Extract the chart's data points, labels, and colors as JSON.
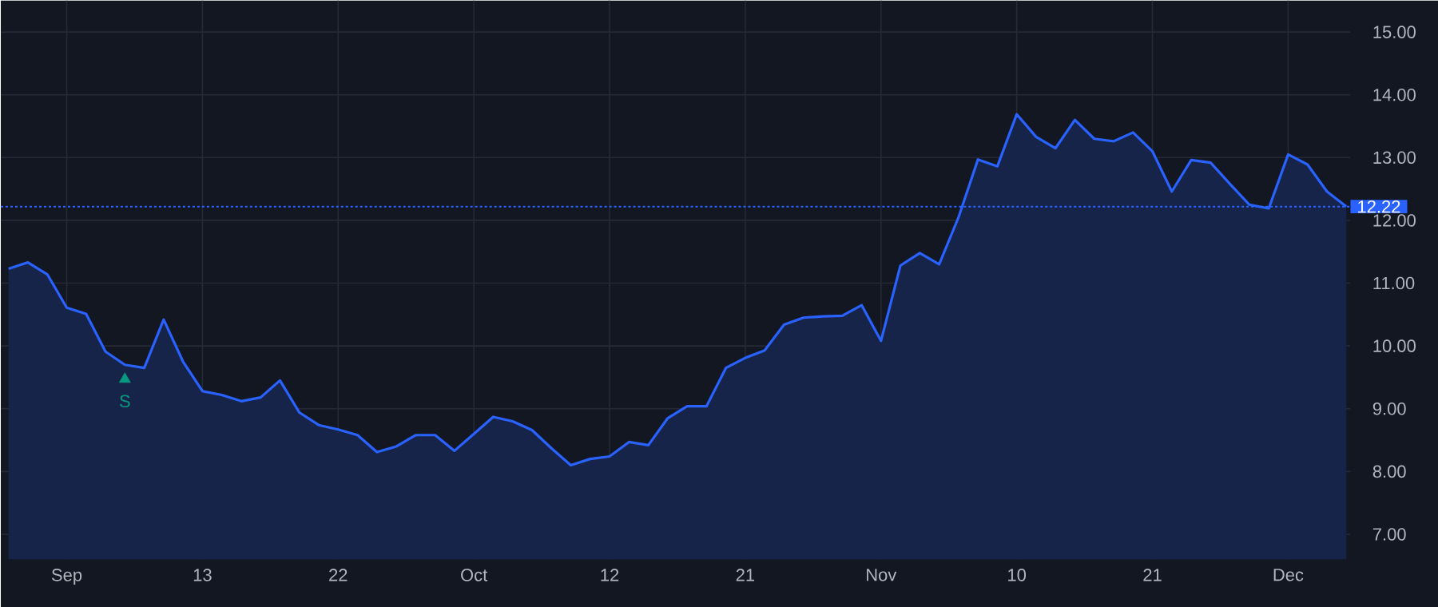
{
  "chart_data": {
    "type": "area",
    "categories": [
      null,
      null,
      null,
      "Sep",
      null,
      null,
      null,
      null,
      null,
      null,
      "13",
      null,
      null,
      null,
      null,
      null,
      null,
      "22",
      null,
      null,
      null,
      null,
      null,
      null,
      "Oct",
      null,
      null,
      null,
      null,
      null,
      null,
      "12",
      null,
      null,
      null,
      null,
      null,
      null,
      "21",
      null,
      null,
      null,
      null,
      null,
      null,
      "Nov",
      null,
      null,
      null,
      null,
      null,
      null,
      "10",
      null,
      null,
      null,
      null,
      null,
      null,
      "21",
      null,
      null,
      null,
      null,
      null,
      null,
      "Dec",
      null,
      null,
      null
    ],
    "series": [
      {
        "color": "#2962ff",
        "values": [
          11.23,
          11.33,
          11.14,
          10.61,
          10.51,
          9.91,
          9.7,
          9.65,
          10.42,
          9.75,
          9.28,
          9.22,
          9.12,
          9.18,
          9.45,
          8.94,
          8.74,
          8.67,
          8.58,
          8.31,
          8.4,
          8.58,
          8.58,
          8.33,
          8.6,
          8.87,
          8.8,
          8.66,
          8.37,
          8.1,
          8.2,
          8.24,
          8.47,
          8.42,
          8.85,
          9.04,
          9.04,
          9.65,
          9.81,
          9.93,
          10.34,
          10.45,
          10.47,
          10.48,
          10.65,
          10.08,
          11.28,
          11.48,
          11.3,
          12.05,
          12.97,
          12.86,
          13.69,
          13.33,
          13.15,
          13.6,
          13.3,
          13.26,
          13.4,
          13.1,
          12.46,
          12.96,
          12.92,
          12.58,
          12.25,
          12.19,
          13.05,
          12.89,
          12.46,
          12.22
        ]
      },
      {
        "type": "scatter",
        "name": "S",
        "color": "#089981",
        "marker": "triangle",
        "values": [
          null,
          null,
          null,
          null,
          null,
          null,
          9.47,
          null,
          null,
          null,
          null,
          null,
          null,
          null,
          null,
          null,
          null,
          null,
          null,
          null,
          null,
          null,
          null,
          null,
          null,
          null,
          null,
          null,
          null,
          null,
          null,
          null,
          null,
          null,
          null,
          null,
          null,
          null,
          null,
          null,
          null,
          null,
          null,
          null,
          null,
          null,
          null,
          null,
          null,
          null,
          null,
          null,
          null,
          null,
          null,
          null,
          null,
          null,
          null,
          null,
          null,
          null,
          null,
          null,
          null,
          null,
          null,
          null,
          null,
          null
        ]
      }
    ],
    "ylim": [
      6.6,
      15.5
    ],
    "yticks": [
      {
        "value": 7,
        "label": "7.00"
      },
      {
        "value": 8,
        "label": "8.00"
      },
      {
        "value": 9,
        "label": "9.00"
      },
      {
        "value": 10,
        "label": "10.00"
      },
      {
        "value": 11,
        "label": "11.00"
      },
      {
        "value": 12,
        "label": "12.00"
      },
      {
        "value": 13,
        "label": "13.00"
      },
      {
        "value": 14,
        "label": "14.00"
      },
      {
        "value": 15,
        "label": "15.00"
      }
    ],
    "grid": true,
    "ref_lines": [
      {
        "axis": "y",
        "value": 12.22,
        "label": "12.22",
        "color": "#2962ff",
        "line_style": "dotted"
      }
    ]
  }
}
